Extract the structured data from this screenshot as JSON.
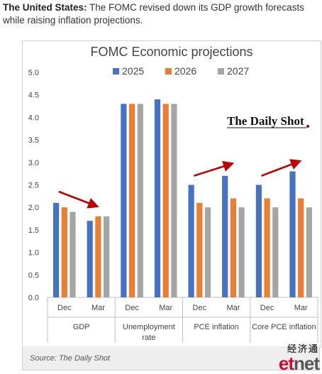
{
  "intro": {
    "bold": "The United States:",
    "text": " The FOMC revised down its GDP growth forecasts while raising inflation projections."
  },
  "source": "Source: The Daily Shot",
  "brand": "The Daily Shot",
  "watermark": {
    "cn": "经济通",
    "en_red": "et",
    "en_gray": "net"
  },
  "chart_data": {
    "type": "bar",
    "title": "FOMC Economic projections",
    "xlabel": "",
    "ylabel": "",
    "ylim": [
      0,
      5
    ],
    "yticks": [
      "0.0",
      "0.5",
      "1.0",
      "1.5",
      "2.0",
      "2.5",
      "3.0",
      "3.5",
      "4.0",
      "4.5",
      "5.0"
    ],
    "legend_position": "top",
    "groups": [
      {
        "label": [
          "GDP"
        ],
        "categories": [
          "Dec",
          "Mar"
        ]
      },
      {
        "label": [
          "Unemployment",
          "rate"
        ],
        "categories": [
          "Dec",
          "Mar"
        ]
      },
      {
        "label": [
          "PCE inflation"
        ],
        "categories": [
          "Dec",
          "Mar"
        ]
      },
      {
        "label": [
          "Core PCE inflation"
        ],
        "categories": [
          "Dec",
          "Mar"
        ]
      }
    ],
    "series": [
      {
        "name": "2025",
        "color": "#4472c4",
        "values": [
          2.1,
          1.7,
          4.3,
          4.4,
          2.5,
          2.7,
          2.5,
          2.8
        ]
      },
      {
        "name": "2026",
        "color": "#ed7d31",
        "values": [
          2.0,
          1.8,
          4.3,
          4.3,
          2.1,
          2.2,
          2.2,
          2.2
        ]
      },
      {
        "name": "2027",
        "color": "#a5a5a5",
        "values": [
          1.9,
          1.8,
          4.3,
          4.3,
          2.0,
          2.0,
          2.0,
          2.0
        ]
      }
    ],
    "arrows": [
      {
        "from": [
          0,
          2.35
        ],
        "to": [
          1,
          2.05
        ],
        "direction": "down"
      },
      {
        "from": [
          4,
          2.7
        ],
        "to": [
          5,
          2.95
        ],
        "direction": "up"
      },
      {
        "from": [
          6,
          2.7
        ],
        "to": [
          7,
          3.0
        ],
        "direction": "up"
      }
    ],
    "arrow_color": "#c00000"
  }
}
